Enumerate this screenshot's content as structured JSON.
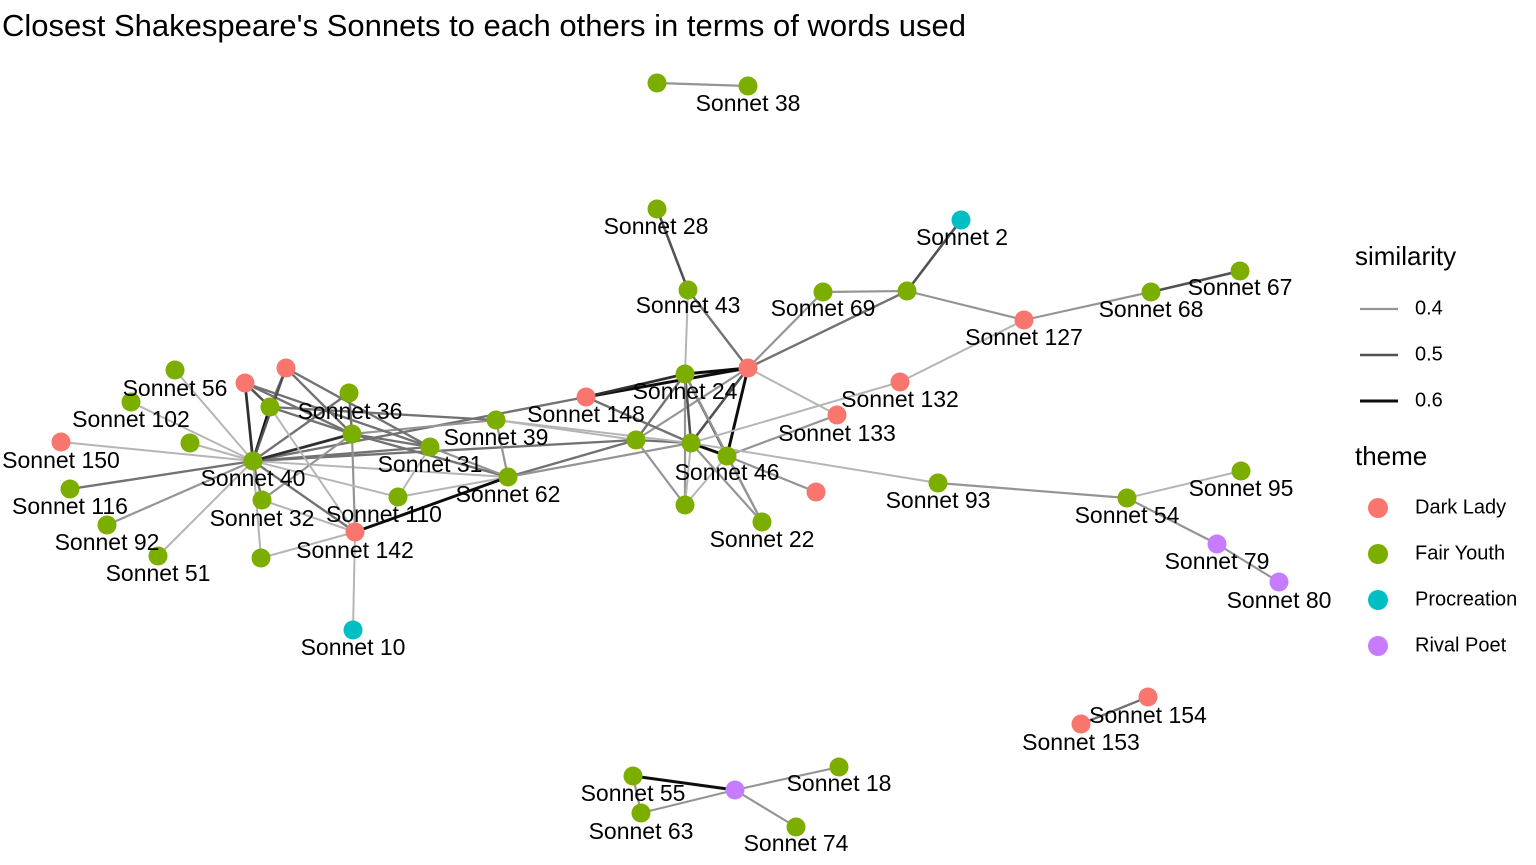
{
  "title": "Closest Shakespeare's Sonnets to each others in terms of words used",
  "chart_data": {
    "type": "network",
    "title": "Closest Shakespeare's Sonnets to each others in terms of words used",
    "theme_colors": {
      "Dark Lady": "#F8766D",
      "Fair Youth": "#7CAE00",
      "Procreation": "#00BFC4",
      "Rival Poet": "#C77CFF"
    },
    "legend": {
      "similarity_title": "similarity",
      "similarity_levels": [
        {
          "label": "0.4",
          "value": 0.4
        },
        {
          "label": "0.5",
          "value": 0.5
        },
        {
          "label": "0.6",
          "value": 0.6
        }
      ],
      "theme_title": "theme",
      "themes": [
        "Dark Lady",
        "Fair Youth",
        "Procreation",
        "Rival Poet"
      ]
    },
    "nodes": [
      {
        "id": "s38",
        "label": "Sonnet 38",
        "theme": "Fair Youth"
      },
      {
        "id": "u38",
        "label": "",
        "theme": "Fair Youth"
      },
      {
        "id": "s28",
        "label": "Sonnet 28",
        "theme": "Fair Youth"
      },
      {
        "id": "s2",
        "label": "Sonnet 2",
        "theme": "Procreation"
      },
      {
        "id": "s43",
        "label": "Sonnet 43",
        "theme": "Fair Youth"
      },
      {
        "id": "s69",
        "label": "Sonnet 69",
        "theme": "Fair Youth"
      },
      {
        "id": "uHub69",
        "label": "",
        "theme": "Fair Youth"
      },
      {
        "id": "s127",
        "label": "Sonnet 127",
        "theme": "Dark Lady"
      },
      {
        "id": "s68",
        "label": "Sonnet 68",
        "theme": "Fair Youth"
      },
      {
        "id": "s67",
        "label": "Sonnet 67",
        "theme": "Fair Youth"
      },
      {
        "id": "uRedHub",
        "label": "",
        "theme": "Dark Lady"
      },
      {
        "id": "s24",
        "label": "Sonnet 24",
        "theme": "Fair Youth"
      },
      {
        "id": "s148",
        "label": "Sonnet 148",
        "theme": "Dark Lady"
      },
      {
        "id": "s132",
        "label": "Sonnet 132",
        "theme": "Dark Lady"
      },
      {
        "id": "s133",
        "label": "Sonnet 133",
        "theme": "Dark Lady"
      },
      {
        "id": "s46",
        "label": "Sonnet 46",
        "theme": "Fair Youth"
      },
      {
        "id": "uC1",
        "label": "",
        "theme": "Fair Youth"
      },
      {
        "id": "uC2",
        "label": "",
        "theme": "Fair Youth"
      },
      {
        "id": "uRed2",
        "label": "",
        "theme": "Dark Lady"
      },
      {
        "id": "s22",
        "label": "Sonnet 22",
        "theme": "Fair Youth"
      },
      {
        "id": "uG3",
        "label": "",
        "theme": "Fair Youth"
      },
      {
        "id": "s93",
        "label": "Sonnet 93",
        "theme": "Fair Youth"
      },
      {
        "id": "s54",
        "label": "Sonnet 54",
        "theme": "Fair Youth"
      },
      {
        "id": "s95",
        "label": "Sonnet 95",
        "theme": "Fair Youth"
      },
      {
        "id": "s79",
        "label": "Sonnet 79",
        "theme": "Rival Poet"
      },
      {
        "id": "s80",
        "label": "Sonnet 80",
        "theme": "Rival Poet"
      },
      {
        "id": "s39",
        "label": "Sonnet 39",
        "theme": "Fair Youth"
      },
      {
        "id": "s62",
        "label": "Sonnet 62",
        "theme": "Fair Youth"
      },
      {
        "id": "s31",
        "label": "Sonnet 31",
        "theme": "Fair Youth"
      },
      {
        "id": "s36",
        "label": "Sonnet 36",
        "theme": "Fair Youth"
      },
      {
        "id": "uG36",
        "label": "",
        "theme": "Fair Youth"
      },
      {
        "id": "s56",
        "label": "Sonnet 56",
        "theme": "Dark Lady"
      },
      {
        "id": "uRed3",
        "label": "",
        "theme": "Dark Lady"
      },
      {
        "id": "uG4",
        "label": "",
        "theme": "Fair Youth"
      },
      {
        "id": "uG5",
        "label": "",
        "theme": "Fair Youth"
      },
      {
        "id": "s102",
        "label": "Sonnet 102",
        "theme": "Fair Youth"
      },
      {
        "id": "uG6",
        "label": "",
        "theme": "Fair Youth"
      },
      {
        "id": "s150",
        "label": "Sonnet 150",
        "theme": "Dark Lady"
      },
      {
        "id": "s40",
        "label": "Sonnet 40",
        "theme": "Fair Youth"
      },
      {
        "id": "s116",
        "label": "Sonnet 116",
        "theme": "Fair Youth"
      },
      {
        "id": "s92",
        "label": "Sonnet 92",
        "theme": "Fair Youth"
      },
      {
        "id": "s51",
        "label": "Sonnet 51",
        "theme": "Fair Youth"
      },
      {
        "id": "s32",
        "label": "Sonnet 32",
        "theme": "Fair Youth"
      },
      {
        "id": "uG7",
        "label": "",
        "theme": "Fair Youth"
      },
      {
        "id": "s110",
        "label": "Sonnet 110",
        "theme": "Fair Youth"
      },
      {
        "id": "s142",
        "label": "Sonnet 142",
        "theme": "Dark Lady"
      },
      {
        "id": "s10",
        "label": "Sonnet 10",
        "theme": "Procreation"
      },
      {
        "id": "s154",
        "label": "Sonnet 154",
        "theme": "Dark Lady"
      },
      {
        "id": "s153",
        "label": "Sonnet 153",
        "theme": "Dark Lady"
      },
      {
        "id": "s55",
        "label": "Sonnet 55",
        "theme": "Fair Youth"
      },
      {
        "id": "s63",
        "label": "Sonnet 63",
        "theme": "Fair Youth"
      },
      {
        "id": "uRP",
        "label": "",
        "theme": "Rival Poet"
      },
      {
        "id": "s18",
        "label": "Sonnet 18",
        "theme": "Fair Youth"
      },
      {
        "id": "s74",
        "label": "Sonnet 74",
        "theme": "Fair Youth"
      }
    ],
    "edges": [
      {
        "source": "u38",
        "target": "s38",
        "similarity": 0.4
      },
      {
        "source": "s28",
        "target": "s43",
        "similarity": 0.5
      },
      {
        "source": "s2",
        "target": "uHub69",
        "similarity": 0.5
      },
      {
        "source": "s69",
        "target": "uHub69",
        "similarity": 0.4
      },
      {
        "source": "uHub69",
        "target": "s127",
        "similarity": 0.4
      },
      {
        "source": "s127",
        "target": "s68",
        "similarity": 0.4
      },
      {
        "source": "s68",
        "target": "s67",
        "similarity": 0.5
      },
      {
        "source": "s127",
        "target": "s132",
        "similarity": 0.35
      },
      {
        "source": "uRedHub",
        "target": "uHub69",
        "similarity": 0.45
      },
      {
        "source": "uRedHub",
        "target": "s69",
        "similarity": 0.4
      },
      {
        "source": "uRedHub",
        "target": "s43",
        "similarity": 0.45
      },
      {
        "source": "uRedHub",
        "target": "s24",
        "similarity": 0.6
      },
      {
        "source": "uRedHub",
        "target": "s148",
        "similarity": 0.6
      },
      {
        "source": "uRedHub",
        "target": "s46",
        "similarity": 0.6
      },
      {
        "source": "uRedHub",
        "target": "uC2",
        "similarity": 0.5
      },
      {
        "source": "uRedHub",
        "target": "uC1",
        "similarity": 0.4
      },
      {
        "source": "uRedHub",
        "target": "s133",
        "similarity": 0.35
      },
      {
        "source": "s43",
        "target": "s24",
        "similarity": 0.35
      },
      {
        "source": "s24",
        "target": "s148",
        "similarity": 0.55
      },
      {
        "source": "s24",
        "target": "s46",
        "similarity": 0.5
      },
      {
        "source": "s24",
        "target": "uC1",
        "similarity": 0.45
      },
      {
        "source": "s24",
        "target": "uC2",
        "similarity": 0.5
      },
      {
        "source": "s24",
        "target": "s22",
        "similarity": 0.4
      },
      {
        "source": "s24",
        "target": "uG3",
        "similarity": 0.4
      },
      {
        "source": "s148",
        "target": "uC2",
        "similarity": 0.45
      },
      {
        "source": "s148",
        "target": "s40",
        "similarity": 0.45
      },
      {
        "source": "s132",
        "target": "uC2",
        "similarity": 0.35
      },
      {
        "source": "s133",
        "target": "s46",
        "similarity": 0.4
      },
      {
        "source": "uC2",
        "target": "s46",
        "similarity": 0.6
      },
      {
        "source": "uC1",
        "target": "uC2",
        "similarity": 0.45
      },
      {
        "source": "uC2",
        "target": "s22",
        "similarity": 0.4
      },
      {
        "source": "uC2",
        "target": "uG3",
        "similarity": 0.35
      },
      {
        "source": "uC1",
        "target": "uG3",
        "similarity": 0.4
      },
      {
        "source": "s46",
        "target": "uRed2",
        "similarity": 0.4
      },
      {
        "source": "s46",
        "target": "s22",
        "similarity": 0.4
      },
      {
        "source": "s46",
        "target": "uG3",
        "similarity": 0.35
      },
      {
        "source": "uC2",
        "target": "s93",
        "similarity": 0.35
      },
      {
        "source": "s93",
        "target": "s54",
        "similarity": 0.4
      },
      {
        "source": "s54",
        "target": "s95",
        "similarity": 0.35
      },
      {
        "source": "s54",
        "target": "s79",
        "similarity": 0.4
      },
      {
        "source": "s79",
        "target": "s80",
        "similarity": 0.4
      },
      {
        "source": "uC1",
        "target": "s40",
        "similarity": 0.45
      },
      {
        "source": "uC1",
        "target": "s62",
        "similarity": 0.45
      },
      {
        "source": "uC1",
        "target": "s39",
        "similarity": 0.35
      },
      {
        "source": "uC2",
        "target": "s62",
        "similarity": 0.4
      },
      {
        "source": "uC2",
        "target": "s39",
        "similarity": 0.35
      },
      {
        "source": "s39",
        "target": "s62",
        "similarity": 0.4
      },
      {
        "source": "s39",
        "target": "s36",
        "similarity": 0.4
      },
      {
        "source": "s39",
        "target": "uG36",
        "similarity": 0.45
      },
      {
        "source": "s62",
        "target": "s36",
        "similarity": 0.45
      },
      {
        "source": "s62",
        "target": "s31",
        "similarity": 0.4
      },
      {
        "source": "s62",
        "target": "s40",
        "similarity": 0.35
      },
      {
        "source": "s31",
        "target": "s40",
        "similarity": 0.45
      },
      {
        "source": "s31",
        "target": "s36",
        "similarity": 0.45
      },
      {
        "source": "s31",
        "target": "s56",
        "similarity": 0.45
      },
      {
        "source": "s31",
        "target": "uRed3",
        "similarity": 0.45
      },
      {
        "source": "s31",
        "target": "s110",
        "similarity": 0.35
      },
      {
        "source": "s36",
        "target": "s40",
        "similarity": 0.55
      },
      {
        "source": "s36",
        "target": "uG36",
        "similarity": 0.45
      },
      {
        "source": "s36",
        "target": "uRed3",
        "similarity": 0.45
      },
      {
        "source": "s36",
        "target": "s56",
        "similarity": 0.45
      },
      {
        "source": "s36",
        "target": "uG4",
        "similarity": 0.45
      },
      {
        "source": "s36",
        "target": "s32",
        "similarity": 0.4
      },
      {
        "source": "s36",
        "target": "s142",
        "similarity": 0.4
      },
      {
        "source": "uG36",
        "target": "s40",
        "similarity": 0.6
      },
      {
        "source": "uG36",
        "target": "s56",
        "similarity": 0.5
      },
      {
        "source": "uG36",
        "target": "uRed3",
        "similarity": 0.45
      },
      {
        "source": "s56",
        "target": "s40",
        "similarity": 0.55
      },
      {
        "source": "uRed3",
        "target": "s40",
        "similarity": 0.5
      },
      {
        "source": "uG4",
        "target": "s40",
        "similarity": 0.45
      },
      {
        "source": "uG5",
        "target": "s40",
        "similarity": 0.35
      },
      {
        "source": "s102",
        "target": "s40",
        "similarity": 0.35
      },
      {
        "source": "uG6",
        "target": "s40",
        "similarity": 0.35
      },
      {
        "source": "s150",
        "target": "s40",
        "similarity": 0.35
      },
      {
        "source": "s116",
        "target": "s40",
        "similarity": 0.45
      },
      {
        "source": "s92",
        "target": "s40",
        "similarity": 0.4
      },
      {
        "source": "s51",
        "target": "s40",
        "similarity": 0.35
      },
      {
        "source": "s32",
        "target": "s40",
        "similarity": 0.45
      },
      {
        "source": "uG7",
        "target": "s40",
        "similarity": 0.35
      },
      {
        "source": "s142",
        "target": "s40",
        "similarity": 0.45
      },
      {
        "source": "s110",
        "target": "s40",
        "similarity": 0.35
      },
      {
        "source": "s32",
        "target": "s142",
        "similarity": 0.35
      },
      {
        "source": "uG7",
        "target": "s142",
        "similarity": 0.35
      },
      {
        "source": "s110",
        "target": "s62",
        "similarity": 0.35
      },
      {
        "source": "s142",
        "target": "s62",
        "similarity": 0.6
      },
      {
        "source": "s142",
        "target": "s10",
        "similarity": 0.35
      },
      {
        "source": "s142",
        "target": "uG36",
        "similarity": 0.35
      },
      {
        "source": "s154",
        "target": "s153",
        "similarity": 0.45
      },
      {
        "source": "s55",
        "target": "uRP",
        "similarity": 0.6
      },
      {
        "source": "s55",
        "target": "s63",
        "similarity": 0.4
      },
      {
        "source": "s63",
        "target": "uRP",
        "similarity": 0.4
      },
      {
        "source": "uRP",
        "target": "s18",
        "similarity": 0.4
      },
      {
        "source": "uRP",
        "target": "s74",
        "similarity": 0.4
      }
    ]
  }
}
